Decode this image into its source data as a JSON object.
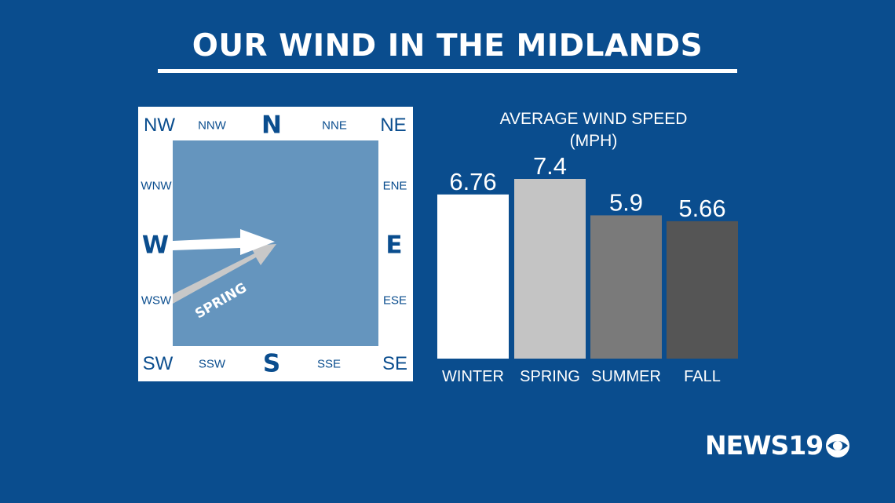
{
  "title": "OUR WIND IN THE MIDLANDS",
  "compass": {
    "N": "N",
    "S": "S",
    "E": "E",
    "W": "W",
    "NW": "NW",
    "NE": "NE",
    "SW": "SW",
    "SE": "SE",
    "NNW": "NNW",
    "NNE": "NNE",
    "WNW": "WNW",
    "ENE": "ENE",
    "WSW": "WSW",
    "ESE": "ESE",
    "SSW": "SSW",
    "SSE": "SSE",
    "spring_arrow_label": "SPRING"
  },
  "chart_data": {
    "type": "bar",
    "title": "AVERAGE WIND SPEED",
    "subtitle": "(MPH)",
    "categories": [
      "WINTER",
      "SPRING",
      "SUMMER",
      "FALL"
    ],
    "values": [
      6.76,
      7.4,
      5.9,
      5.66
    ],
    "value_labels": [
      "6.76",
      "7.4",
      "5.9",
      "5.66"
    ],
    "colors": [
      "#ffffff",
      "#c4c4c4",
      "#7a7a7a",
      "#555555"
    ]
  },
  "logo": {
    "text": "NEWS19"
  }
}
